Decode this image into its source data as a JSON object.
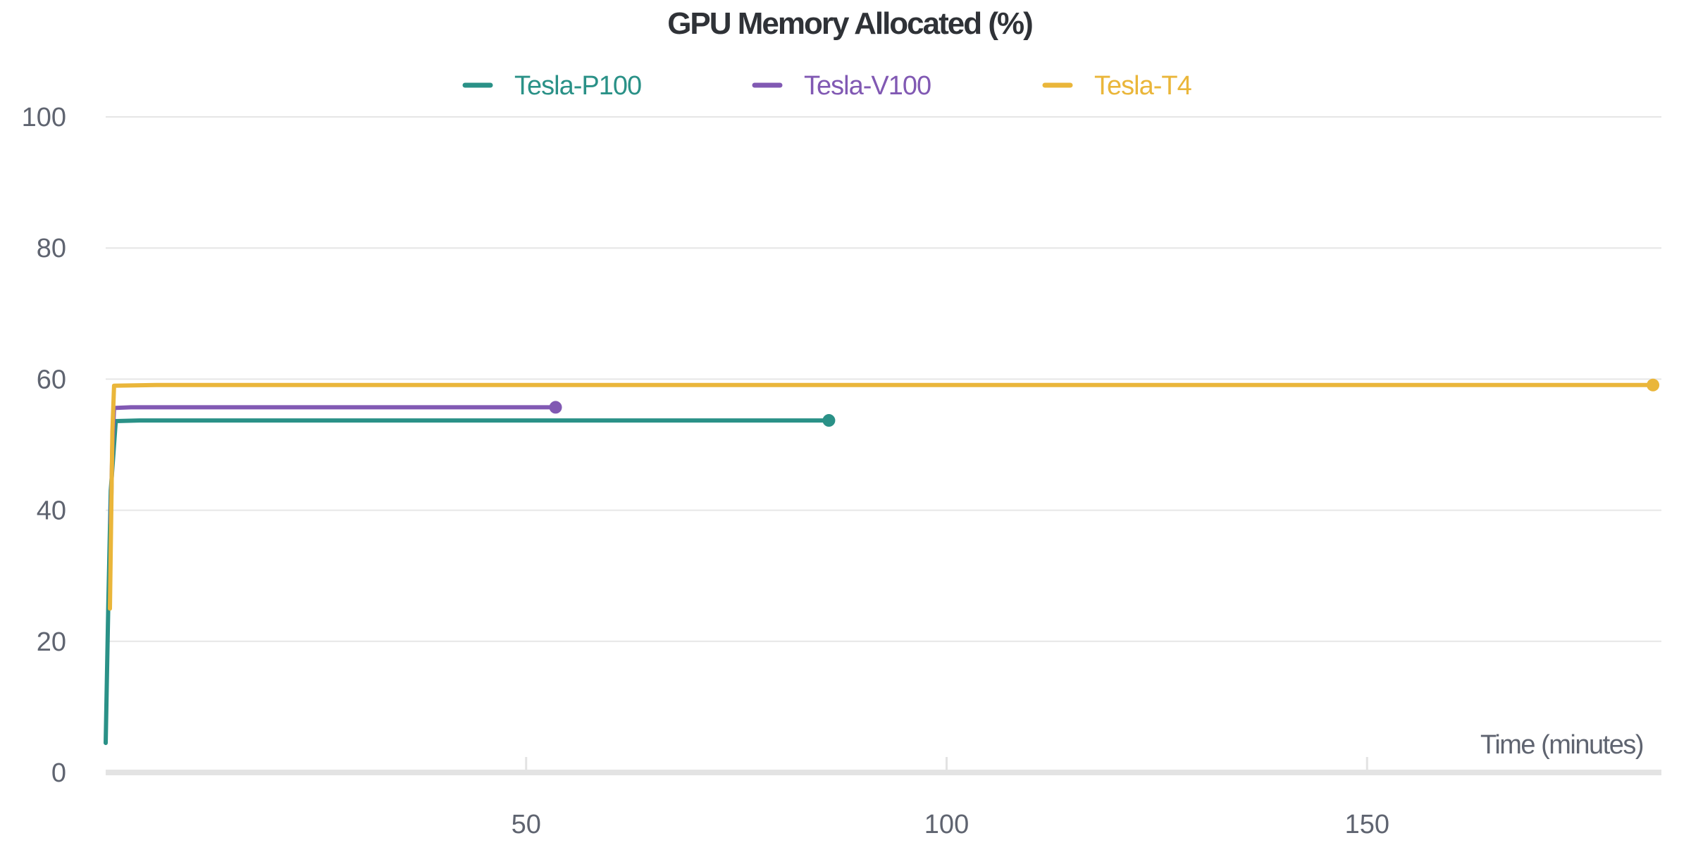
{
  "chart_data": {
    "type": "line",
    "title": "GPU Memory Allocated (%)",
    "xlabel": "Time (minutes)",
    "ylabel": "",
    "xlim": [
      0,
      185
    ],
    "ylim": [
      0,
      100
    ],
    "xticks": [
      50,
      100,
      150
    ],
    "yticks": [
      0,
      20,
      40,
      60,
      80,
      100
    ],
    "grid": true,
    "legend": "top-center",
    "series": [
      {
        "name": "Tesla-P100",
        "color": "#2a9187",
        "x": [
          0,
          0.3,
          0.6,
          1.2,
          4,
          86
        ],
        "y": [
          4.5,
          25,
          43,
          53.6,
          53.7,
          53.7
        ]
      },
      {
        "name": "Tesla-V100",
        "color": "#8159b3",
        "x": [
          0.6,
          0.8,
          1.0,
          3,
          53.5
        ],
        "y": [
          38,
          50,
          55.6,
          55.7,
          55.7
        ]
      },
      {
        "name": "Tesla-T4",
        "color": "#eab63a",
        "x": [
          0.5,
          0.8,
          1.0,
          6,
          184
        ],
        "y": [
          25,
          52,
          59.0,
          59.1,
          59.1
        ]
      }
    ]
  }
}
